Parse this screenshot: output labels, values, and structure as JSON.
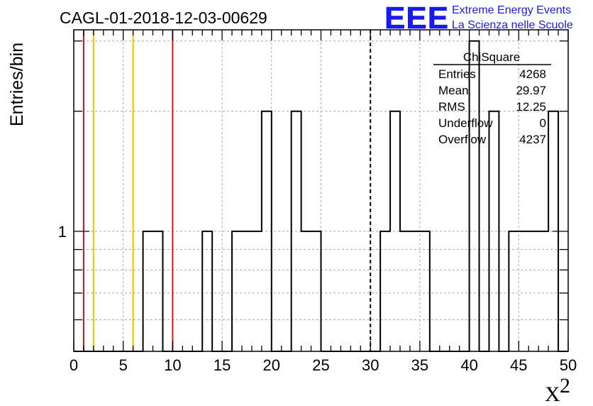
{
  "chart_data": {
    "type": "bar",
    "title": "CAGL-01-2018-12-03-00629",
    "xlabel": "X",
    "xlabel_superscript": "2",
    "ylabel": "Entries/bin",
    "xlim": [
      0,
      50
    ],
    "ylim": [
      0.5,
      3.2
    ],
    "y_scale": "log",
    "grid": true,
    "bin_width": 1,
    "x_ticks": [
      0,
      5,
      10,
      15,
      20,
      25,
      30,
      35,
      40,
      45,
      50
    ],
    "x_tick_labels": [
      "0",
      "5",
      "10",
      "15",
      "20",
      "25",
      "30",
      "35",
      "40",
      "45",
      "50"
    ],
    "y_tick_labels": [
      {
        "value": 1,
        "label": "1"
      }
    ],
    "bins": [
      {
        "x": 7.5,
        "value": 1
      },
      {
        "x": 8.5,
        "value": 1
      },
      {
        "x": 13.5,
        "value": 1
      },
      {
        "x": 16.5,
        "value": 1
      },
      {
        "x": 17.5,
        "value": 1
      },
      {
        "x": 18.5,
        "value": 1
      },
      {
        "x": 19.5,
        "value": 2
      },
      {
        "x": 22.5,
        "value": 2
      },
      {
        "x": 23.5,
        "value": 1
      },
      {
        "x": 24.5,
        "value": 1
      },
      {
        "x": 31.5,
        "value": 1
      },
      {
        "x": 32.5,
        "value": 2
      },
      {
        "x": 33.5,
        "value": 1
      },
      {
        "x": 34.5,
        "value": 1
      },
      {
        "x": 35.5,
        "value": 1
      },
      {
        "x": 40.5,
        "value": 3
      },
      {
        "x": 42.5,
        "value": 2
      },
      {
        "x": 44.5,
        "value": 1
      },
      {
        "x": 45.5,
        "value": 1
      },
      {
        "x": 46.5,
        "value": 1
      },
      {
        "x": 47.5,
        "value": 1
      },
      {
        "x": 48.5,
        "value": 2
      }
    ],
    "vertical_lines": [
      {
        "x": 1,
        "color": "#dd1111",
        "style": "solid"
      },
      {
        "x": 2,
        "color": "#f2c000",
        "style": "solid"
      },
      {
        "x": 6,
        "color": "#f2c000",
        "style": "solid"
      },
      {
        "x": 10,
        "color": "#dd1111",
        "style": "solid"
      },
      {
        "x": 30,
        "color": "#000000",
        "style": "dashed"
      }
    ],
    "stats_box": {
      "title": "ChiSquare",
      "rows": [
        {
          "label": "Entries",
          "value": "4268"
        },
        {
          "label": "Mean",
          "value": "29.97"
        },
        {
          "label": "RMS",
          "value": "12.25"
        },
        {
          "label": "Underflow",
          "value": "0"
        },
        {
          "label": "Overflow",
          "value": "4237"
        }
      ]
    }
  },
  "logo": {
    "mark": "EEE",
    "line1": "Extreme Energy Events",
    "line2": "La Scienza nelle Scuole",
    "color": "#1a1aee"
  }
}
